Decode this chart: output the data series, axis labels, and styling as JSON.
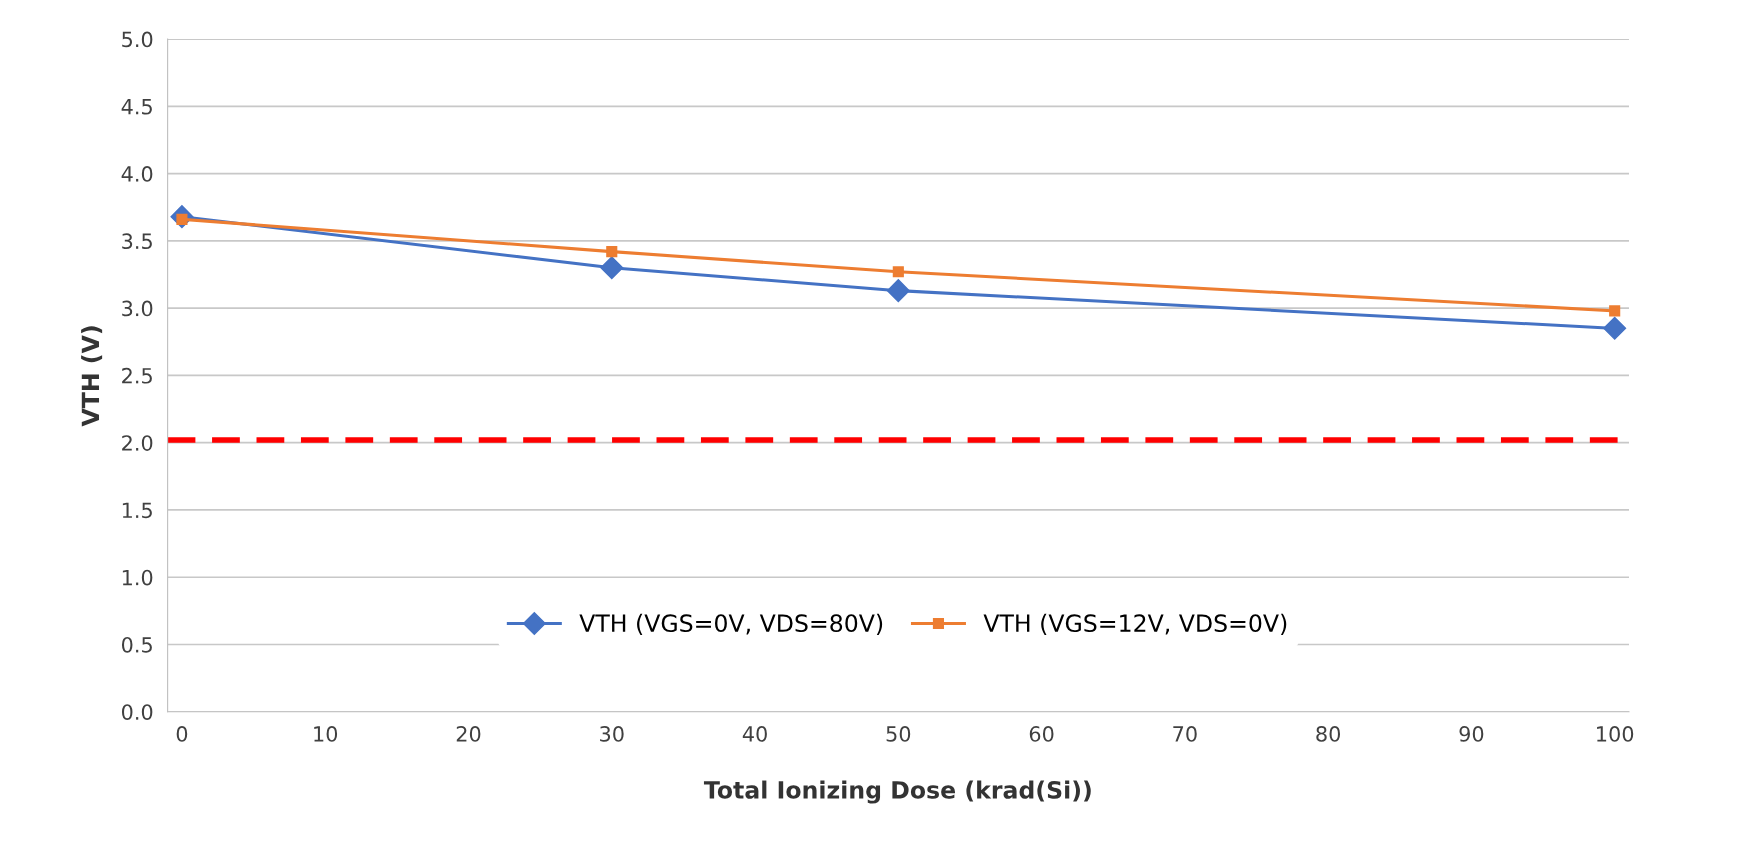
{
  "chart_data": {
    "type": "line",
    "xlabel": "Total Ionizing Dose (krad(Si))",
    "ylabel": "VTH (V)",
    "x": [
      0,
      30,
      50,
      100
    ],
    "series": [
      {
        "name": "VTH (VGS=0V, VDS=80V)",
        "color": "#4472c4",
        "values": [
          3.68,
          3.3,
          3.13,
          2.85
        ],
        "marker": "diamond"
      },
      {
        "name": "VTH (VGS=12V, VDS=0V)",
        "color": "#ed7d31",
        "values": [
          3.66,
          3.42,
          3.27,
          2.98
        ],
        "marker": "square"
      }
    ],
    "xlim": [
      -1,
      101
    ],
    "xticks": [
      0,
      10,
      20,
      30,
      40,
      50,
      60,
      70,
      80,
      90,
      100
    ],
    "ylim": [
      0,
      5
    ],
    "yticks": [
      {
        "value": 0,
        "label": "0.0"
      },
      {
        "value": 0.5,
        "label": "0.5"
      },
      {
        "value": 1,
        "label": "1.0"
      },
      {
        "value": 1.5,
        "label": "1.5"
      },
      {
        "value": 2,
        "label": "2.0"
      },
      {
        "value": 2.5,
        "label": "2.5"
      },
      {
        "value": 3,
        "label": "3.0"
      },
      {
        "value": 3.5,
        "label": "3.5"
      },
      {
        "value": 4,
        "label": "4.0"
      },
      {
        "value": 4.5,
        "label": "4.5"
      },
      {
        "value": 5,
        "label": "5.0"
      }
    ],
    "ref_lines": [
      {
        "axis": "y",
        "value": 2.02,
        "color": "#ff0000",
        "line_style": "dashed"
      }
    ],
    "grid": "y",
    "legend": "bottom",
    "line_style": "solid"
  }
}
